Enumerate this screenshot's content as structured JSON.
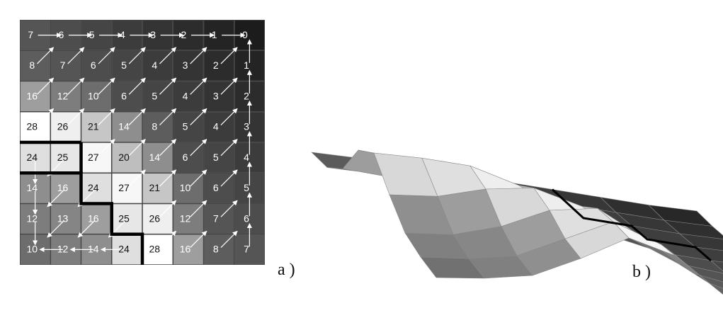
{
  "panel_a": {
    "label": "a )",
    "grid": [
      [
        7,
        6,
        5,
        4,
        3,
        2,
        1,
        0
      ],
      [
        8,
        7,
        6,
        5,
        4,
        3,
        2,
        1
      ],
      [
        16,
        12,
        10,
        6,
        5,
        4,
        3,
        2
      ],
      [
        28,
        26,
        21,
        14,
        8,
        5,
        4,
        3
      ],
      [
        24,
        25,
        27,
        20,
        14,
        6,
        5,
        4
      ],
      [
        14,
        16,
        24,
        27,
        21,
        10,
        6,
        5
      ],
      [
        12,
        13,
        16,
        25,
        26,
        12,
        7,
        6
      ],
      [
        10,
        12,
        14,
        24,
        28,
        16,
        8,
        7
      ]
    ],
    "boundary_color": "#000000"
  },
  "panel_b": {
    "label": "b )"
  }
}
